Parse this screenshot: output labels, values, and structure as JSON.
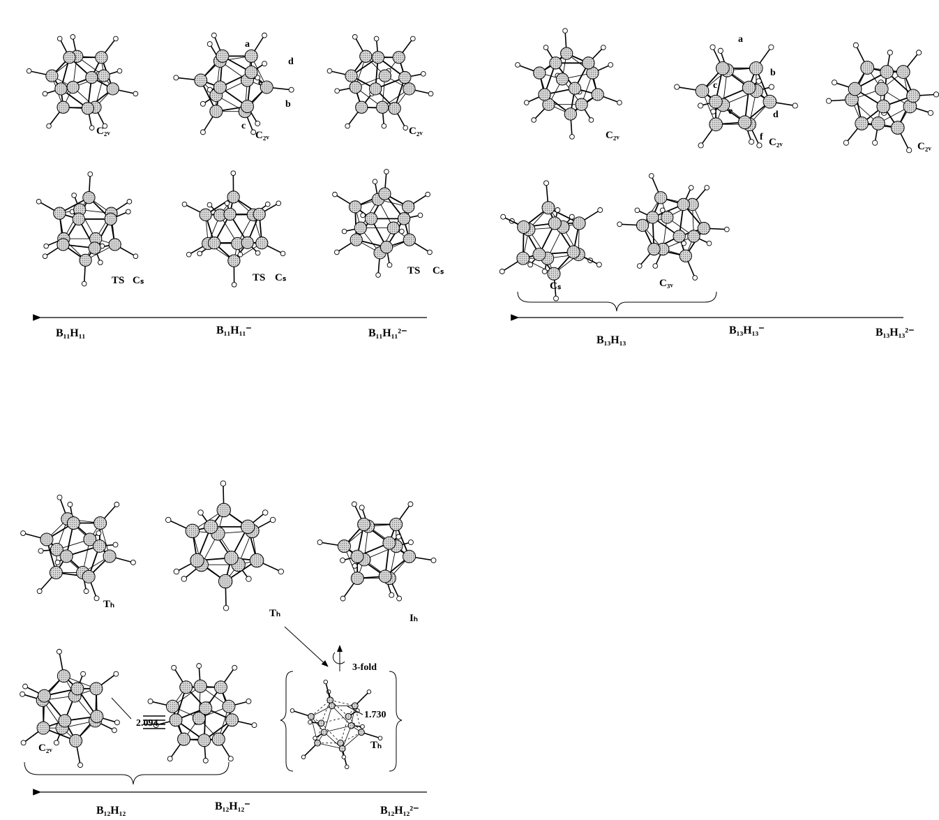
{
  "panel_b11": {
    "symmetry_labels": [
      "C₂ᵥ",
      "C₂ᵥ",
      "C₂ᵥ"
    ],
    "ts_labels": [
      "TS",
      "TS",
      "TS"
    ],
    "ts_symmetry": [
      "Cₛ",
      "Cₛ",
      "Cₛ"
    ],
    "atom_labels": [
      "a",
      "d",
      "e",
      "b",
      "c"
    ],
    "formulas": [
      "B₁₁H₁₁",
      "B₁₁H₁₁⁻",
      "B₁₁H₁₁²⁻"
    ]
  },
  "panel_b13": {
    "symmetry_labels": [
      "C₂ᵥ",
      "C₂ᵥ",
      "C₂ᵥ",
      "Cₛ",
      "C₃ᵥ"
    ],
    "atom_labels": [
      "a",
      "b",
      "c",
      "d",
      "e",
      "f"
    ],
    "formulas": [
      "B₁₃H₁₃",
      "B₁₃H₁₃⁻",
      "B₁₃H₁₃²⁻"
    ]
  },
  "panel_b12": {
    "symmetry_labels": [
      "Tₕ",
      "Tₕ",
      "Iₕ",
      "C₂ᵥ",
      "Tₕ"
    ],
    "annotations": [
      "3-fold",
      "2.094",
      "1.730"
    ],
    "formulas": [
      "B₁₂H₁₂",
      "B₁₂H₁₂⁻",
      "B₁₂H₁₂²⁻"
    ]
  }
}
